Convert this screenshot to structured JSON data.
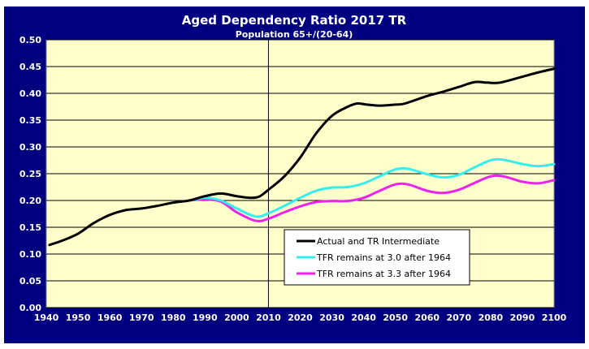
{
  "chart_data": {
    "type": "line",
    "title": "Aged Dependency Ratio 2017 TR",
    "subtitle": "Population 65+/(20-64)",
    "xlabel": "",
    "ylabel": "",
    "xlim": [
      1940,
      2100
    ],
    "ylim": [
      0,
      0.5
    ],
    "x_ticks": [
      "1940",
      "1950",
      "1960",
      "1970",
      "1980",
      "1990",
      "2000",
      "2010",
      "2020",
      "2030",
      "2040",
      "2050",
      "2060",
      "2070",
      "2080",
      "2090",
      "2100"
    ],
    "y_ticks": [
      "0.00",
      "0.05",
      "0.10",
      "0.15",
      "0.20",
      "0.25",
      "0.30",
      "0.35",
      "0.40",
      "0.45",
      "0.50"
    ],
    "grid": "horizontal",
    "vertical_marker_x": 2010,
    "legend_placement": "lower-center-right",
    "plot_background": "#FFFFCC",
    "frame_color": "#000080",
    "series": [
      {
        "name": "Actual and TR Intermediate",
        "color": "#000000",
        "points": [
          [
            1941,
            0.117
          ],
          [
            1945,
            0.125
          ],
          [
            1950,
            0.138
          ],
          [
            1955,
            0.158
          ],
          [
            1960,
            0.173
          ],
          [
            1965,
            0.182
          ],
          [
            1970,
            0.185
          ],
          [
            1975,
            0.19
          ],
          [
            1980,
            0.196
          ],
          [
            1985,
            0.2
          ],
          [
            1990,
            0.208
          ],
          [
            1995,
            0.213
          ],
          [
            2000,
            0.208
          ],
          [
            2004,
            0.205
          ],
          [
            2007,
            0.207
          ],
          [
            2010,
            0.22
          ],
          [
            2015,
            0.245
          ],
          [
            2020,
            0.28
          ],
          [
            2025,
            0.325
          ],
          [
            2030,
            0.358
          ],
          [
            2035,
            0.375
          ],
          [
            2038,
            0.381
          ],
          [
            2041,
            0.379
          ],
          [
            2045,
            0.377
          ],
          [
            2050,
            0.379
          ],
          [
            2053,
            0.381
          ],
          [
            2060,
            0.395
          ],
          [
            2065,
            0.403
          ],
          [
            2070,
            0.412
          ],
          [
            2075,
            0.421
          ],
          [
            2079,
            0.42
          ],
          [
            2083,
            0.42
          ],
          [
            2090,
            0.431
          ],
          [
            2095,
            0.439
          ],
          [
            2100,
            0.446
          ]
        ]
      },
      {
        "name": "TFR remains at 3.0 after 1964",
        "color": "#33EEEE",
        "points": [
          [
            1985,
            0.2
          ],
          [
            1990,
            0.205
          ],
          [
            1995,
            0.2
          ],
          [
            2000,
            0.185
          ],
          [
            2006,
            0.17
          ],
          [
            2010,
            0.176
          ],
          [
            2015,
            0.19
          ],
          [
            2020,
            0.205
          ],
          [
            2025,
            0.218
          ],
          [
            2030,
            0.224
          ],
          [
            2035,
            0.225
          ],
          [
            2040,
            0.232
          ],
          [
            2045,
            0.245
          ],
          [
            2050,
            0.258
          ],
          [
            2054,
            0.259
          ],
          [
            2060,
            0.249
          ],
          [
            2065,
            0.243
          ],
          [
            2070,
            0.248
          ],
          [
            2075,
            0.262
          ],
          [
            2080,
            0.275
          ],
          [
            2084,
            0.276
          ],
          [
            2090,
            0.268
          ],
          [
            2095,
            0.264
          ],
          [
            2100,
            0.268
          ]
        ]
      },
      {
        "name": "TFR remains at 3.3 after 1964",
        "color": "#EE22EE",
        "points": [
          [
            1985,
            0.2
          ],
          [
            1990,
            0.202
          ],
          [
            1995,
            0.198
          ],
          [
            2000,
            0.178
          ],
          [
            2006,
            0.162
          ],
          [
            2010,
            0.166
          ],
          [
            2015,
            0.178
          ],
          [
            2020,
            0.189
          ],
          [
            2025,
            0.197
          ],
          [
            2030,
            0.199
          ],
          [
            2035,
            0.199
          ],
          [
            2040,
            0.205
          ],
          [
            2045,
            0.218
          ],
          [
            2050,
            0.23
          ],
          [
            2054,
            0.23
          ],
          [
            2060,
            0.218
          ],
          [
            2065,
            0.214
          ],
          [
            2070,
            0.22
          ],
          [
            2075,
            0.233
          ],
          [
            2080,
            0.245
          ],
          [
            2084,
            0.245
          ],
          [
            2090,
            0.235
          ],
          [
            2095,
            0.232
          ],
          [
            2100,
            0.238
          ]
        ]
      }
    ]
  }
}
